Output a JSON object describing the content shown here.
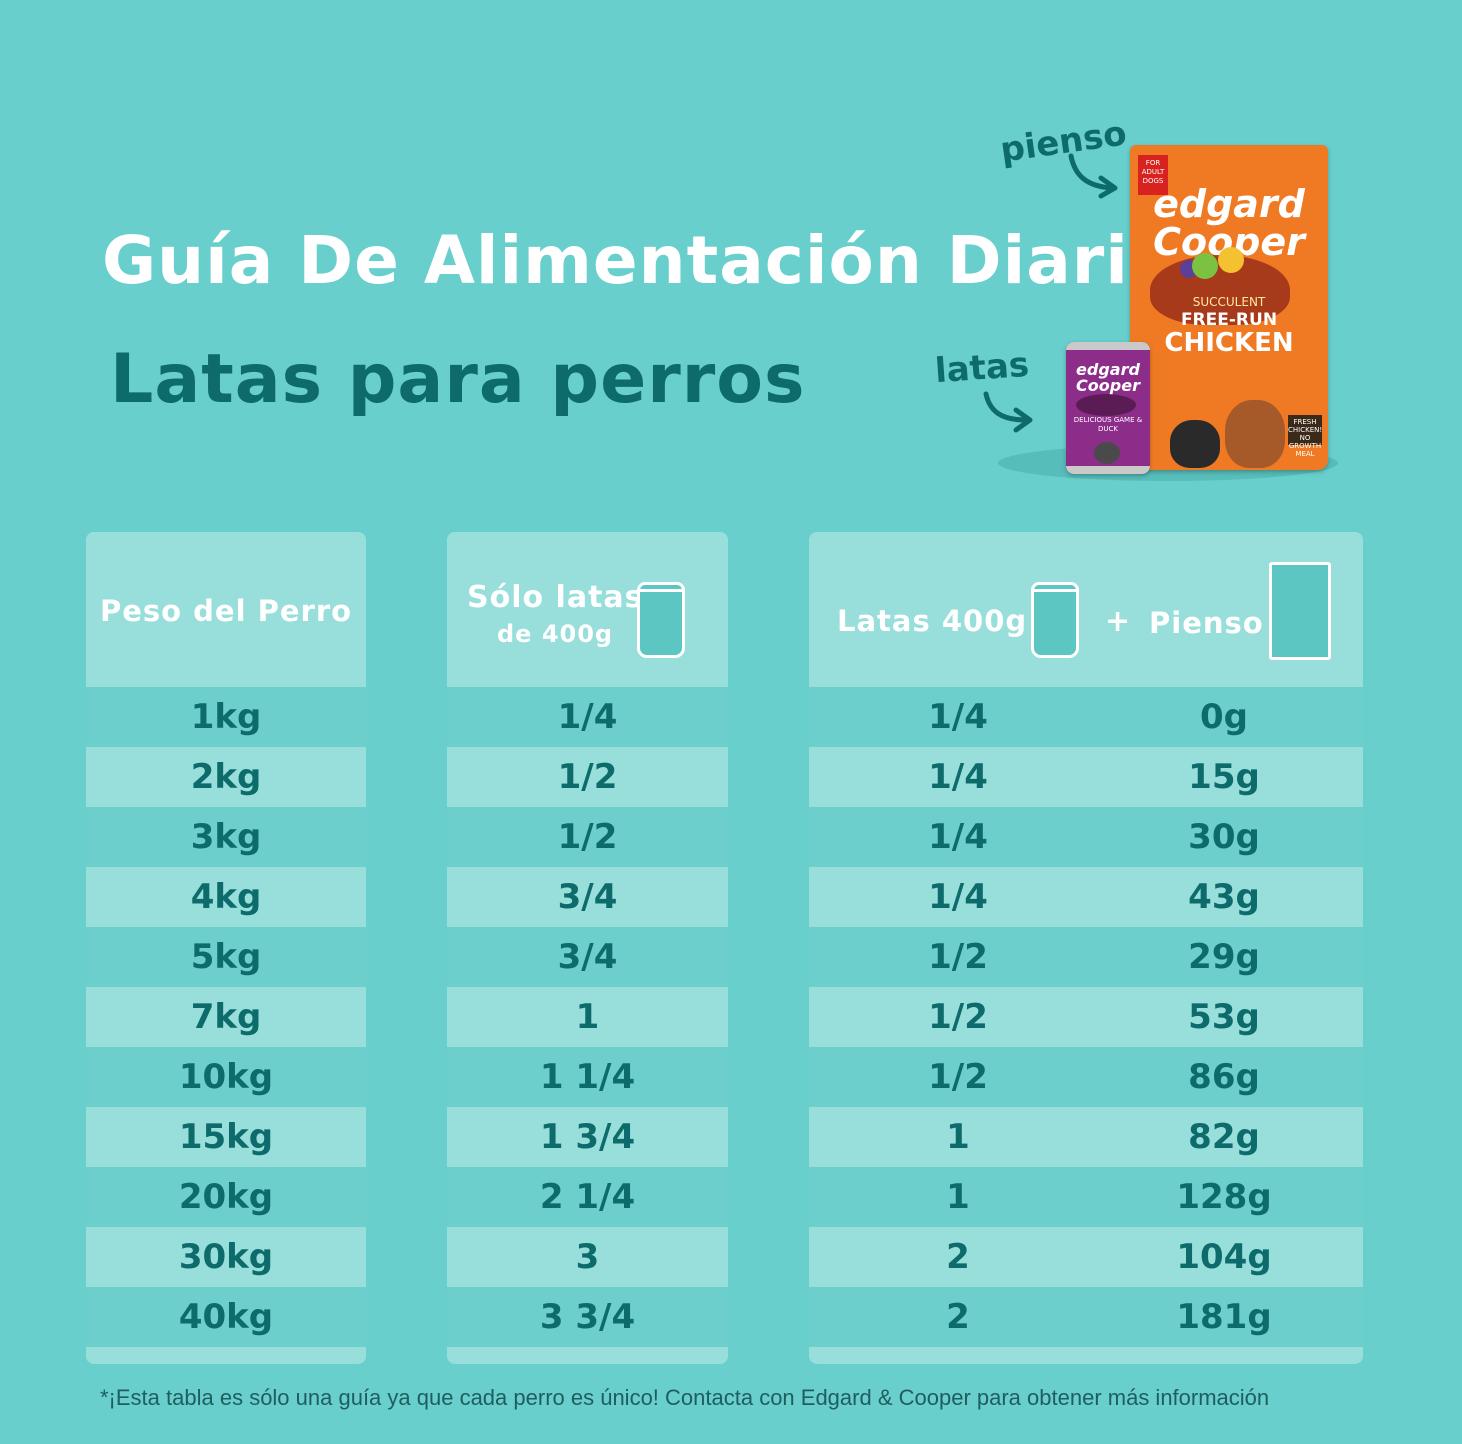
{
  "header": {
    "title": "Guía De Alimentación Diaria",
    "subtitle": "Latas para perros",
    "callout_pienso": "pienso",
    "callout_latas": "latas"
  },
  "product_bag": {
    "tag": "FOR ADULT DOGS",
    "brand": "edgard Cooper",
    "claim_small": "SUCCULENT",
    "claim_mid": "FREE-RUN",
    "claim_main": "CHICKEN",
    "sign": "FRESH CHICKEN! NO GROWTH MEAL"
  },
  "product_can": {
    "brand": "edgard Cooper",
    "label": "DELICIOUS GAME & DUCK"
  },
  "table1": {
    "header": "Peso del Perro",
    "rows": [
      "1kg",
      "2kg",
      "3kg",
      "4kg",
      "5kg",
      "7kg",
      "10kg",
      "15kg",
      "20kg",
      "30kg",
      "40kg"
    ]
  },
  "table2": {
    "header_line1": "Sólo latas",
    "header_line2": "de 400g",
    "rows": [
      "1/4",
      "1/2",
      "1/2",
      "3/4",
      "3/4",
      "1",
      "1 1/4",
      "1 3/4",
      "2 1/4",
      "3",
      "3 3/4"
    ]
  },
  "table3": {
    "header_latas": "Latas  400g",
    "header_plus": "+",
    "header_pienso": "Pienso",
    "rows": [
      {
        "latas": "1/4",
        "pienso": "0g"
      },
      {
        "latas": "1/4",
        "pienso": "15g"
      },
      {
        "latas": "1/4",
        "pienso": "30g"
      },
      {
        "latas": "1/4",
        "pienso": "43g"
      },
      {
        "latas": "1/2",
        "pienso": "29g"
      },
      {
        "latas": "1/2",
        "pienso": "53g"
      },
      {
        "latas": "1/2",
        "pienso": "86g"
      },
      {
        "latas": "1",
        "pienso": "82g"
      },
      {
        "latas": "1",
        "pienso": "128g"
      },
      {
        "latas": "2",
        "pienso": "104g"
      },
      {
        "latas": "2",
        "pienso": "181g"
      }
    ]
  },
  "footnote": "*¡Esta tabla es sólo una guía ya que cada perro es único! Contacta con Edgard & Cooper para obtener más información",
  "colors": {
    "background": "#68cfcc",
    "panel": "#98dedb",
    "text_dark": "#0e6b6c",
    "bag": "#f07a23",
    "can": "#8d2d8a"
  }
}
